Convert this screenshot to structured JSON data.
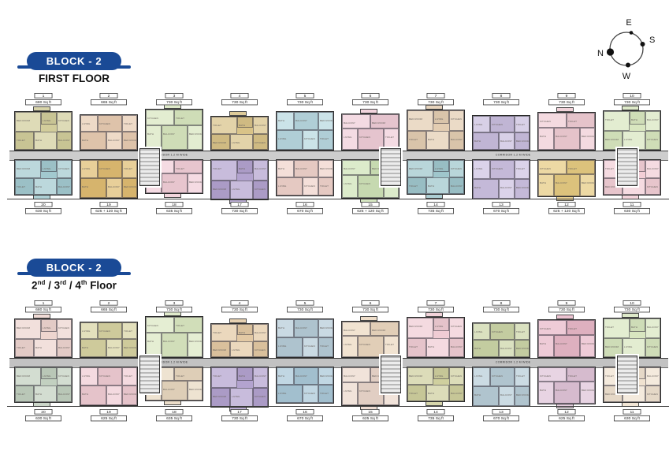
{
  "headers": {
    "first": {
      "block": "BLOCK - 2",
      "floor": "FIRST FLOOR",
      "pill_color": "#1a4a96"
    },
    "upper": {
      "block": "BLOCK - 2",
      "pill_color": "#1a4a96",
      "floor_segments": [
        {
          "t": "2"
        },
        {
          "t": "nd",
          "sup": true
        },
        {
          "t": " / 3"
        },
        {
          "t": "rd",
          "sup": true
        },
        {
          "t": " / 4"
        },
        {
          "t": "th",
          "sup": true
        },
        {
          "t": " Floor"
        }
      ]
    }
  },
  "compass": {
    "top": "E",
    "right": "S",
    "bottom": "W",
    "left": "N"
  },
  "corridor_label": "CORRIDOR 1.2 M WIDE",
  "room_labels": [
    "BED ROOM",
    "LIVING",
    "KITCHEN",
    "TOILET",
    "BATH",
    "BALCONY"
  ],
  "plans": [
    {
      "id": "first-floor",
      "top_units": [
        {
          "no": "1",
          "area": "680 Sq ft",
          "color": "#d2cd9b"
        },
        {
          "no": "2",
          "area": "665 Sq ft",
          "color": "#e8ccb2"
        },
        {
          "no": "3",
          "area": "730 Sq ft",
          "color": "#d9e7c0"
        },
        {
          "no": "4",
          "area": "730 Sq ft",
          "color": "#d9c388"
        },
        {
          "no": "5",
          "area": "730 Sq ft",
          "color": "#b8d8e0"
        },
        {
          "no": "6",
          "area": "730 Sq ft",
          "color": "#f0cdd8"
        },
        {
          "no": "7",
          "area": "730 Sq ft",
          "color": "#e3cdb2"
        },
        {
          "no": "8",
          "area": "730 Sq ft",
          "color": "#c9bede"
        },
        {
          "no": "9",
          "area": "730 Sq ft",
          "color": "#f0ccd4"
        },
        {
          "no": "10",
          "area": "730 Sq ft",
          "color": "#d9e7c0"
        }
      ],
      "bottom_units": [
        {
          "no": "20",
          "area": "630 Sq ft",
          "color": "#a2c9cf"
        },
        {
          "no": "19",
          "area": "625 + 120 Sq ft",
          "color": "#e0bd72"
        },
        {
          "no": "18",
          "area": "635 Sq ft",
          "color": "#f2ced8"
        },
        {
          "no": "17",
          "area": "730 Sq ft",
          "color": "#b3a3cf"
        },
        {
          "no": "16",
          "area": "670 Sq ft",
          "color": "#f0d3cb"
        },
        {
          "no": "15",
          "area": "625 + 120 Sq ft",
          "color": "#cfe3b8"
        },
        {
          "no": "14",
          "area": "735 Sq ft",
          "color": "#9fc6cc"
        },
        {
          "no": "13",
          "area": "670 Sq ft",
          "color": "#cdc2e2"
        },
        {
          "no": "12",
          "area": "625 + 120 Sq ft",
          "color": "#e6cb82"
        },
        {
          "no": "11",
          "area": "630 Sq ft",
          "color": "#f2ced6"
        }
      ]
    },
    {
      "id": "upper-floor",
      "top_units": [
        {
          "no": "1",
          "area": "680 Sq ft",
          "color": "#eed5cf"
        },
        {
          "no": "2",
          "area": "665 Sq ft",
          "color": "#d8d4a2"
        },
        {
          "no": "3",
          "area": "730 Sq ft",
          "color": "#dbe8c2"
        },
        {
          "no": "4",
          "area": "730 Sq ft",
          "color": "#e3c9a4"
        },
        {
          "no": "5",
          "area": "730 Sq ft",
          "color": "#b6ccd8"
        },
        {
          "no": "6",
          "area": "730 Sq ft",
          "color": "#ecd8c0"
        },
        {
          "no": "7",
          "area": "730 Sq ft",
          "color": "#f0ccd4"
        },
        {
          "no": "8",
          "area": "730 Sq ft",
          "color": "#ccd6a8"
        },
        {
          "no": "9",
          "area": "730 Sq ft",
          "color": "#e8b8c8"
        },
        {
          "no": "10",
          "area": "730 Sq ft",
          "color": "#d8e6c0"
        }
      ],
      "bottom_units": [
        {
          "no": "20",
          "area": "630 Sq ft",
          "color": "#c2d0c0"
        },
        {
          "no": "19",
          "area": "625 Sq ft",
          "color": "#f0ccd4"
        },
        {
          "no": "18",
          "area": "635 Sq ft",
          "color": "#e8d8c0"
        },
        {
          "no": "17",
          "area": "730 Sq ft",
          "color": "#b3a3cf"
        },
        {
          "no": "16",
          "area": "670 Sq ft",
          "color": "#aac8d8"
        },
        {
          "no": "15",
          "area": "625 Sq ft",
          "color": "#ecd8cc"
        },
        {
          "no": "14",
          "area": "735 Sq ft",
          "color": "#cfcf9e"
        },
        {
          "no": "13",
          "area": "670 Sq ft",
          "color": "#b8cdd8"
        },
        {
          "no": "12",
          "area": "625 Sq ft",
          "color": "#e0c4d8"
        },
        {
          "no": "11",
          "area": "630 Sq ft",
          "color": "#f0e2d0"
        }
      ]
    }
  ]
}
